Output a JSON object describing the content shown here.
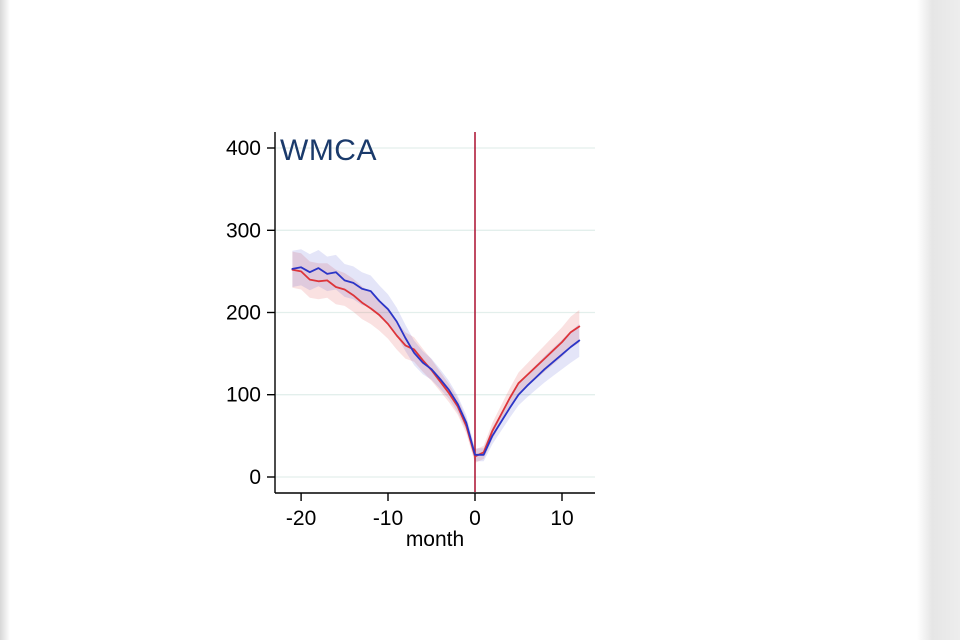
{
  "page": {
    "background": "#ffffff"
  },
  "chart_data": {
    "type": "line",
    "title": "WMCA",
    "xlabel": "month",
    "ylabel": "",
    "x": [
      -21,
      -20,
      -19,
      -18,
      -17,
      -16,
      -15,
      -14,
      -13,
      -12,
      -11,
      -10,
      -9,
      -8,
      -7,
      -6,
      -5,
      -4,
      -3,
      -2,
      -1,
      0,
      1,
      2,
      3,
      4,
      5,
      6,
      7,
      8,
      9,
      10,
      11,
      12
    ],
    "series": [
      {
        "name": "red",
        "color": "#dd3439",
        "band_color": "rgba(221,52,57,0.15)",
        "values": [
          252,
          250,
          240,
          238,
          239,
          231,
          228,
          221,
          212,
          205,
          197,
          186,
          172,
          160,
          155,
          142,
          130,
          116,
          102,
          86,
          62,
          25,
          30,
          56,
          76,
          96,
          114,
          124,
          134,
          144,
          154,
          164,
          176,
          183
        ],
        "band": [
          22,
          22,
          22,
          22,
          21,
          21,
          20,
          20,
          20,
          19,
          19,
          18,
          17,
          16,
          15,
          14,
          13,
          12,
          11,
          10,
          9,
          8,
          8,
          10,
          11,
          12,
          13,
          14,
          15,
          16,
          17,
          18,
          19,
          20
        ]
      },
      {
        "name": "blue",
        "color": "#2b35c7",
        "band_color": "rgba(43,53,199,0.13)",
        "values": [
          253,
          255,
          249,
          254,
          247,
          249,
          239,
          236,
          229,
          226,
          214,
          204,
          189,
          169,
          151,
          139,
          131,
          119,
          106,
          89,
          66,
          27,
          27,
          50,
          67,
          84,
          100,
          111,
          121,
          131,
          140,
          149,
          158,
          166
        ],
        "band": [
          22,
          22,
          22,
          22,
          21,
          21,
          20,
          20,
          20,
          19,
          19,
          18,
          17,
          16,
          15,
          14,
          13,
          12,
          11,
          10,
          9,
          8,
          8,
          10,
          11,
          12,
          13,
          14,
          15,
          16,
          17,
          18,
          19,
          20
        ]
      }
    ],
    "ref_line": {
      "x": 0,
      "color": "#b01e3c"
    },
    "xticks": [
      -20,
      -10,
      0,
      10
    ],
    "yticks": [
      0,
      100,
      200,
      300,
      400
    ],
    "xlim": [
      -23,
      13.8
    ],
    "ylim": [
      -19.5,
      419.5
    ],
    "grid": true,
    "grid_color": "#e3efec",
    "axis_color": "#000000",
    "title_color": "#1a3a6b",
    "legend": "none"
  }
}
